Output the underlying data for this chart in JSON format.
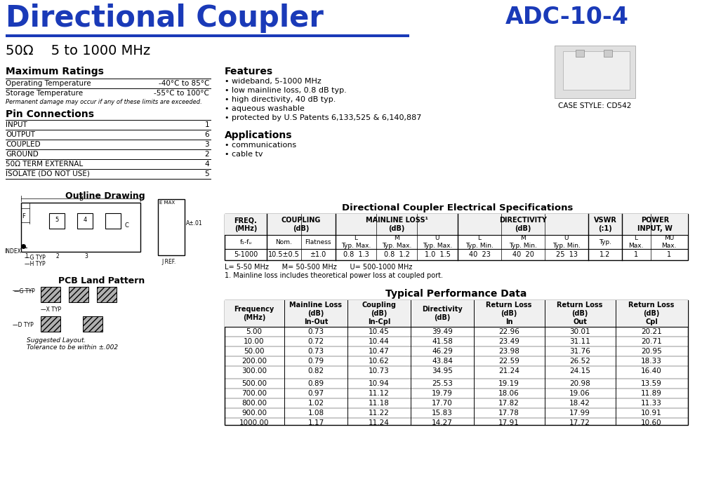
{
  "title_main": "Directional Coupler",
  "title_model": "ADC-10-4",
  "subtitle": "50Ω    5 to 1000 MHz",
  "blue_title_color": "#1a3ab8",
  "separator_color": "#1a3ab8",
  "case_style": "CASE STYLE: CD542",
  "max_ratings_title": "Maximum Ratings",
  "max_ratings": [
    [
      "Operating Temperature",
      "-40°C to 85°C"
    ],
    [
      "Storage Temperature",
      "-55°C to 100°C"
    ]
  ],
  "max_ratings_note": "Permanent damage may occur if any of these limits are exceeded.",
  "pin_conn_title": "Pin Connections",
  "pin_connections": [
    [
      "INPUT",
      "1"
    ],
    [
      "OUTPUT",
      "6"
    ],
    [
      "COUPLED",
      "3"
    ],
    [
      "GROUND",
      "2"
    ],
    [
      "50Ω TERM EXTERNAL",
      "4"
    ],
    [
      "ISOLATE (DO NOT USE)",
      "5"
    ]
  ],
  "outline_title": "Outline Drawing",
  "pcb_title": "PCB Land Pattern",
  "pcb_note": "Suggested Layout.\nTolerance to be within ±.002",
  "features_title": "Features",
  "features": [
    "• wideband, 5-1000 MHz",
    "• low mainline loss, 0.8 dB typ.",
    "• high directivity, 40 dB typ.",
    "• aqueous washable",
    "• protected by U.S Patents 6,133,525 & 6,140,887"
  ],
  "applications_title": "Applications",
  "applications": [
    "• communications",
    "• cable tv"
  ],
  "elec_spec_title": "Directional Coupler Electrical Specifications",
  "elec_spec_data": [
    "5-1000",
    "10.5±0.5",
    "±1.0",
    "0.8  1.3",
    "0.8  1.2",
    "1.0  1.5",
    "40  23",
    "40  20",
    "25  13",
    "1.2",
    "1",
    "1"
  ],
  "elec_spec_notes": [
    "L= 5-50 MHz      M= 50-500 MHz      U= 500-1000 MHz",
    "1. Mainline loss includes theoretical power loss at coupled port."
  ],
  "perf_title": "Typical Performance Data",
  "perf_data": [
    [
      "5.00",
      "0.73",
      "10.45",
      "39.49",
      "22.96",
      "30.01",
      "20.21"
    ],
    [
      "10.00",
      "0.72",
      "10.44",
      "41.58",
      "23.49",
      "31.11",
      "20.71"
    ],
    [
      "50.00",
      "0.73",
      "10.47",
      "46.29",
      "23.98",
      "31.76",
      "20.95"
    ],
    [
      "200.00",
      "0.79",
      "10.62",
      "43.84",
      "22.59",
      "26.52",
      "18.33"
    ],
    [
      "300.00",
      "0.82",
      "10.73",
      "34.95",
      "21.24",
      "24.15",
      "16.40"
    ],
    [
      "500.00",
      "0.89",
      "10.94",
      "25.53",
      "19.19",
      "20.98",
      "13.59"
    ],
    [
      "700.00",
      "0.97",
      "11.12",
      "19.79",
      "18.06",
      "19.06",
      "11.89"
    ],
    [
      "800.00",
      "1.02",
      "11.18",
      "17.70",
      "17.82",
      "18.42",
      "11.33"
    ],
    [
      "900.00",
      "1.08",
      "11.22",
      "15.83",
      "17.78",
      "17.99",
      "10.91"
    ],
    [
      "1000.00",
      "1.17",
      "11.24",
      "14.27",
      "17.91",
      "17.72",
      "10.60"
    ]
  ],
  "bg_color": "#ffffff"
}
